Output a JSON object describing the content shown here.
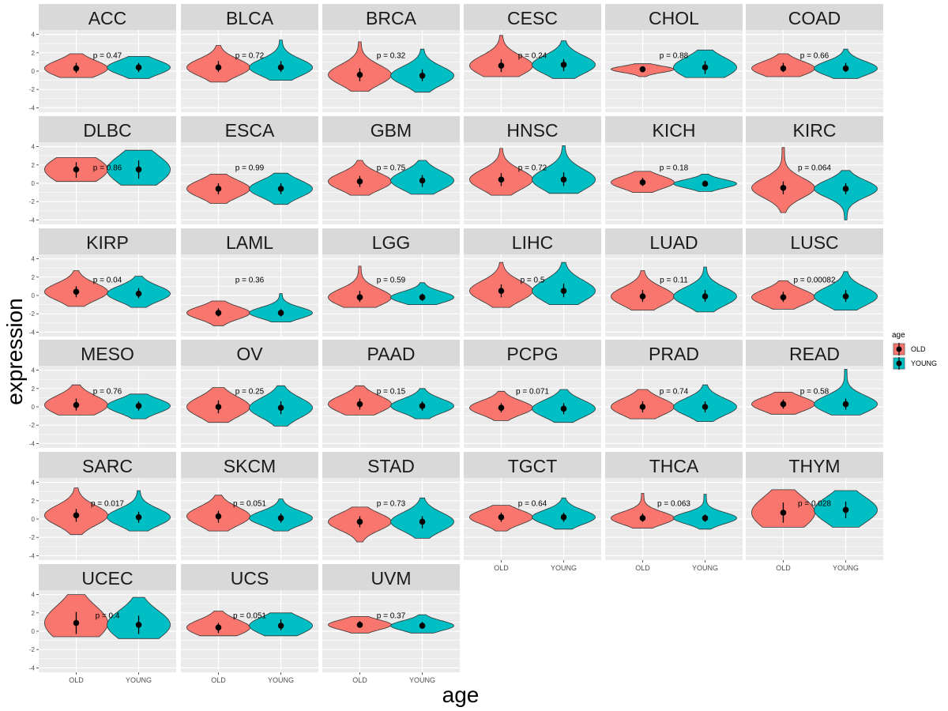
{
  "chart_data": {
    "type": "violin",
    "facet_layout": "wrap 6 columns",
    "xlabel": "age",
    "ylabel": "expression",
    "categories": [
      "OLD",
      "YOUNG"
    ],
    "y_ticks": [
      -4,
      -2,
      0,
      2,
      4
    ],
    "ylim": [
      -4.5,
      4.5
    ],
    "legend": {
      "title": "age",
      "entries": [
        "OLD",
        "YOUNG"
      ],
      "placement": "right"
    },
    "colors": {
      "OLD": "#F8766D",
      "YOUNG": "#00BFC4",
      "panel_bg": "#EBEBEB",
      "strip_bg": "#D9D9D9"
    },
    "value_fields": [
      "mean",
      "bar_low",
      "bar_high",
      "min",
      "max"
    ],
    "panels": [
      {
        "name": "ACC",
        "p_label": "p = 0.47",
        "OLD": [
          0.3,
          -0.2,
          0.9,
          -0.7,
          1.9
        ],
        "YOUNG": [
          0.4,
          -0.1,
          0.9,
          -0.8,
          1.6
        ]
      },
      {
        "name": "BLCA",
        "p_label": "p = 0.72",
        "OLD": [
          0.4,
          -0.1,
          1.1,
          -1.2,
          2.8
        ],
        "YOUNG": [
          0.4,
          -0.1,
          1.1,
          -1.0,
          3.4
        ]
      },
      {
        "name": "BRCA",
        "p_label": "p = 0.32",
        "OLD": [
          -0.4,
          -1.1,
          0.3,
          -2.2,
          3.2
        ],
        "YOUNG": [
          -0.5,
          -1.1,
          0.2,
          -2.3,
          2.4
        ]
      },
      {
        "name": "CESC",
        "p_label": "p = 0.24",
        "OLD": [
          0.6,
          -0.1,
          1.3,
          -0.6,
          3.9
        ],
        "YOUNG": [
          0.7,
          0.0,
          1.3,
          -0.8,
          3.3
        ]
      },
      {
        "name": "CHOL",
        "p_label": "p = 0.88",
        "OLD": [
          0.2,
          0.2,
          0.2,
          -0.6,
          0.8
        ],
        "YOUNG": [
          0.4,
          -0.3,
          1.1,
          -0.7,
          2.3
        ]
      },
      {
        "name": "COAD",
        "p_label": "p = 0.66",
        "OLD": [
          0.3,
          -0.1,
          0.9,
          -0.6,
          1.9
        ],
        "YOUNG": [
          0.3,
          -0.1,
          0.9,
          -0.8,
          2.4
        ]
      },
      {
        "name": "DLBC",
        "p_label": "p = 0.86",
        "OLD": [
          1.5,
          0.6,
          2.3,
          0.2,
          2.8
        ],
        "YOUNG": [
          1.5,
          0.5,
          2.5,
          -0.2,
          3.6
        ]
      },
      {
        "name": "ESCA",
        "p_label": "p = 0.99",
        "OLD": [
          -0.6,
          -1.2,
          0.0,
          -2.2,
          1.0
        ],
        "YOUNG": [
          -0.6,
          -1.2,
          0.0,
          -2.3,
          1.1
        ]
      },
      {
        "name": "GBM",
        "p_label": "p = 0.75",
        "OLD": [
          0.2,
          -0.4,
          0.8,
          -1.3,
          2.5
        ],
        "YOUNG": [
          0.3,
          -0.4,
          0.9,
          -1.2,
          2.5
        ]
      },
      {
        "name": "HNSC",
        "p_label": "p = 0.72",
        "OLD": [
          0.4,
          -0.3,
          1.1,
          -1.3,
          3.8
        ],
        "YOUNG": [
          0.4,
          -0.3,
          1.2,
          -1.1,
          4.1
        ]
      },
      {
        "name": "KICH",
        "p_label": "p = 0.18",
        "OLD": [
          0.1,
          -0.3,
          0.6,
          -1.0,
          1.3
        ],
        "YOUNG": [
          -0.05,
          -0.3,
          0.3,
          -0.9,
          1.0
        ]
      },
      {
        "name": "KIRC",
        "p_label": "p = 0.064",
        "OLD": [
          -0.5,
          -1.2,
          0.2,
          -3.2,
          3.9
        ],
        "YOUNG": [
          -0.6,
          -1.2,
          0.0,
          -4.0,
          1.4
        ]
      },
      {
        "name": "KIRP",
        "p_label": "p = 0.04",
        "OLD": [
          0.4,
          -0.2,
          1.0,
          -1.2,
          2.7
        ],
        "YOUNG": [
          0.2,
          -0.3,
          0.8,
          -1.3,
          2.1
        ]
      },
      {
        "name": "LAML",
        "p_label": "p = 0.36",
        "OLD": [
          -1.9,
          -2.3,
          -1.4,
          -3.3,
          -0.6
        ],
        "YOUNG": [
          -1.9,
          -2.3,
          -1.5,
          -2.9,
          0.2
        ]
      },
      {
        "name": "LGG",
        "p_label": "p = 0.59",
        "OLD": [
          -0.2,
          -0.7,
          0.5,
          -1.3,
          3.2
        ],
        "YOUNG": [
          -0.2,
          -0.6,
          0.2,
          -1.0,
          1.4
        ]
      },
      {
        "name": "LIHC",
        "p_label": "p = 0.5",
        "OLD": [
          0.5,
          -0.2,
          1.2,
          -1.3,
          3.6
        ],
        "YOUNG": [
          0.5,
          -0.2,
          1.3,
          -1.0,
          3.6
        ]
      },
      {
        "name": "LUAD",
        "p_label": "p = 0.11",
        "OLD": [
          -0.1,
          -0.7,
          0.6,
          -1.6,
          2.7
        ],
        "YOUNG": [
          -0.1,
          -0.7,
          0.6,
          -1.8,
          3.1
        ]
      },
      {
        "name": "LUSC",
        "p_label": "p = 0.00082",
        "OLD": [
          -0.2,
          -0.7,
          0.4,
          -1.5,
          1.6
        ],
        "YOUNG": [
          -0.1,
          -0.7,
          0.6,
          -1.6,
          2.6
        ]
      },
      {
        "name": "MESO",
        "p_label": "p = 0.76",
        "OLD": [
          0.2,
          -0.4,
          0.9,
          -0.9,
          2.4
        ],
        "YOUNG": [
          0.1,
          -0.4,
          0.6,
          -1.3,
          1.4
        ]
      },
      {
        "name": "OV",
        "p_label": "p = 0.25",
        "OLD": [
          0.0,
          -0.7,
          0.7,
          -1.7,
          2.1
        ],
        "YOUNG": [
          -0.1,
          -0.8,
          0.6,
          -2.1,
          2.3
        ]
      },
      {
        "name": "PAAD",
        "p_label": "p = 0.15",
        "OLD": [
          0.3,
          -0.3,
          0.9,
          -0.9,
          2.3
        ],
        "YOUNG": [
          0.1,
          -0.4,
          0.6,
          -1.3,
          2.0
        ]
      },
      {
        "name": "PCPG",
        "p_label": "p = 0.071",
        "OLD": [
          -0.1,
          -0.6,
          0.4,
          -1.5,
          1.7
        ],
        "YOUNG": [
          -0.2,
          -0.8,
          0.4,
          -1.7,
          1.9
        ]
      },
      {
        "name": "PRAD",
        "p_label": "p = 0.74",
        "OLD": [
          0.0,
          -0.6,
          0.6,
          -1.3,
          1.9
        ],
        "YOUNG": [
          0.0,
          -0.6,
          0.6,
          -1.6,
          2.4
        ]
      },
      {
        "name": "READ",
        "p_label": "p = 0.58",
        "OLD": [
          0.3,
          -0.2,
          0.8,
          -0.8,
          1.6
        ],
        "YOUNG": [
          0.3,
          -0.3,
          0.9,
          -0.9,
          4.1
        ]
      },
      {
        "name": "SARC",
        "p_label": "p = 0.017",
        "OLD": [
          0.4,
          -0.3,
          1.1,
          -1.7,
          3.4
        ],
        "YOUNG": [
          0.2,
          -0.4,
          0.8,
          -1.3,
          3.1
        ]
      },
      {
        "name": "SKCM",
        "p_label": "p = 0.051",
        "OLD": [
          0.3,
          -0.4,
          0.9,
          -1.3,
          2.6
        ],
        "YOUNG": [
          0.1,
          -0.4,
          0.6,
          -1.3,
          2.2
        ]
      },
      {
        "name": "STAD",
        "p_label": "p = 0.73",
        "OLD": [
          -0.3,
          -0.9,
          0.3,
          -2.5,
          1.3
        ],
        "YOUNG": [
          -0.3,
          -1.0,
          0.3,
          -2.1,
          2.3
        ]
      },
      {
        "name": "TGCT",
        "p_label": "p = 0.64",
        "OLD": [
          0.2,
          -0.3,
          0.7,
          -1.3,
          1.5
        ],
        "YOUNG": [
          0.2,
          -0.3,
          0.7,
          -1.1,
          2.3
        ]
      },
      {
        "name": "THCA",
        "p_label": "p = 0.063",
        "OLD": [
          0.1,
          -0.3,
          0.6,
          -1.0,
          2.8
        ],
        "YOUNG": [
          0.1,
          -0.3,
          0.5,
          -1.1,
          2.7
        ]
      },
      {
        "name": "THYM",
        "p_label": "p = 0.028",
        "OLD": [
          0.7,
          -0.4,
          1.8,
          -0.9,
          3.2
        ],
        "YOUNG": [
          1.0,
          0.1,
          1.9,
          -0.9,
          3.1
        ]
      },
      {
        "name": "UCEC",
        "p_label": "p = 0.4",
        "OLD": [
          0.9,
          -0.3,
          2.1,
          -0.6,
          4.0
        ],
        "YOUNG": [
          0.7,
          -0.3,
          1.7,
          -0.8,
          3.7
        ]
      },
      {
        "name": "UCS",
        "p_label": "p = 0.051",
        "OLD": [
          0.4,
          -0.2,
          0.9,
          -0.5,
          2.2
        ],
        "YOUNG": [
          0.6,
          0.1,
          1.3,
          -0.5,
          2.0
        ]
      },
      {
        "name": "UVM",
        "p_label": "p = 0.37",
        "OLD": [
          0.7,
          0.4,
          1.1,
          -0.2,
          1.6
        ],
        "YOUNG": [
          0.6,
          0.3,
          1.0,
          -0.2,
          1.8
        ]
      }
    ]
  }
}
